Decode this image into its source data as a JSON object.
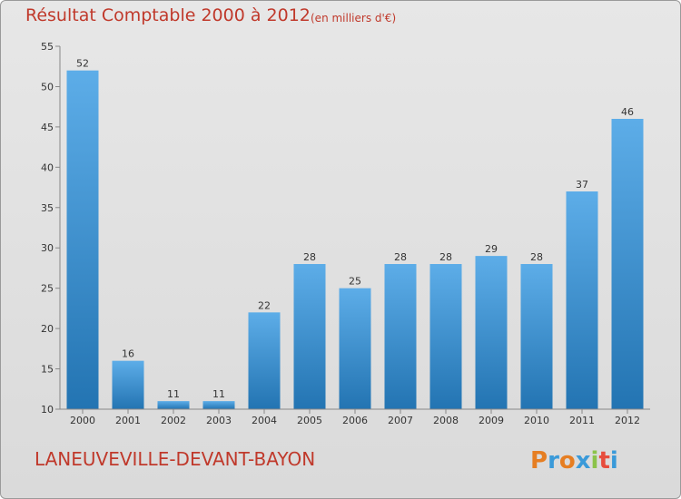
{
  "title": "Résultat Comptable 2000 à 2012",
  "unit_label": "(en milliers d'€)",
  "commune": "LANEUVEVILLE-DEVANT-BAYON",
  "logo": {
    "name": "Proxiti"
  },
  "colors": {
    "title": "#c0392b",
    "bar_top": "#5dade8",
    "bar_bottom": "#2374b2",
    "axis": "#888888"
  },
  "chart_data": {
    "type": "bar",
    "title": "Résultat Comptable 2000 à 2012",
    "xlabel": "",
    "ylabel": "(en milliers d'€)",
    "categories": [
      "2000",
      "2001",
      "2002",
      "2003",
      "2004",
      "2005",
      "2006",
      "2007",
      "2008",
      "2009",
      "2010",
      "2011",
      "2012"
    ],
    "values": [
      52,
      16,
      11,
      11,
      22,
      28,
      25,
      28,
      28,
      29,
      28,
      37,
      46
    ],
    "ylim": [
      10,
      55
    ],
    "yticks": [
      10,
      15,
      20,
      25,
      30,
      35,
      40,
      45,
      50,
      55
    ],
    "grid": false,
    "legend": "none"
  }
}
